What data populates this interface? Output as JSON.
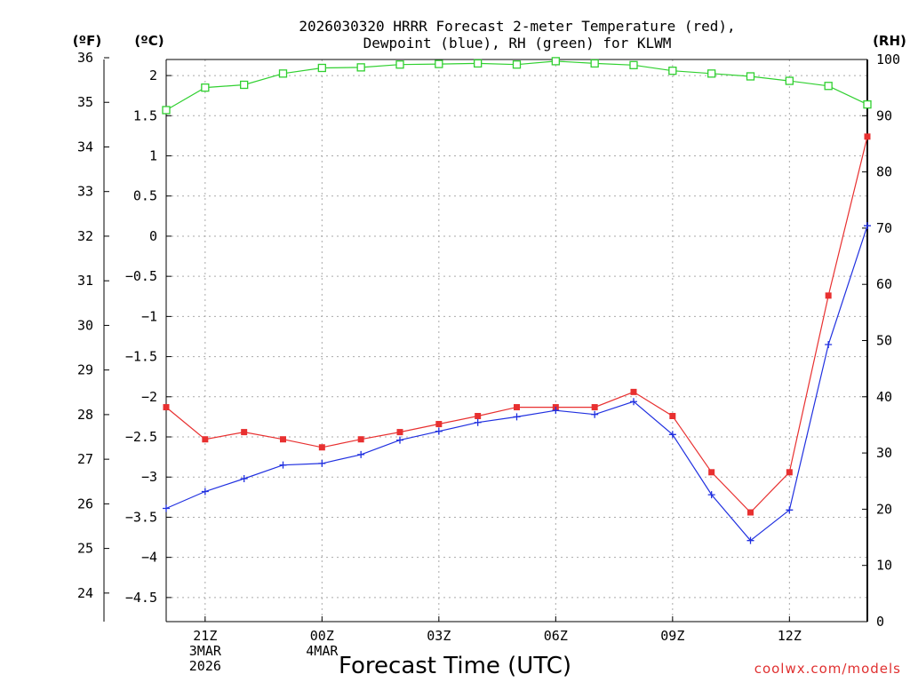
{
  "chart_data": {
    "type": "line",
    "title_line1": "2026030320 HRRR Forecast 2-meter Temperature (red),",
    "title_line2": "Dewpoint (blue), RH (green) for KLWM",
    "xlabel": "Forecast Time (UTC)",
    "credit": "coolwx.com/models",
    "unit_f": "(ºF)",
    "unit_c": "(ºC)",
    "unit_rh": "(RH)",
    "x_hours": [
      0,
      1,
      2,
      3,
      4,
      5,
      6,
      7,
      8,
      9,
      10,
      11,
      12,
      13,
      14,
      15,
      16,
      17,
      18
    ],
    "xlim": [
      0,
      18
    ],
    "x_ticks": [
      {
        "hour": 1,
        "lines": [
          "21Z",
          "3MAR",
          "2026"
        ]
      },
      {
        "hour": 4,
        "lines": [
          "00Z",
          "4MAR"
        ]
      },
      {
        "hour": 7,
        "lines": [
          "03Z"
        ]
      },
      {
        "hour": 10,
        "lines": [
          "06Z"
        ]
      },
      {
        "hour": 13,
        "lines": [
          "09Z"
        ]
      },
      {
        "hour": 16,
        "lines": [
          "12Z"
        ]
      }
    ],
    "ylim_c": [
      -4.8,
      2.2
    ],
    "ylim_rh": [
      0,
      100
    ],
    "c_ticks": [
      "2",
      "1.5",
      "1",
      "0.5",
      "0",
      "−0.5",
      "−1",
      "−1.5",
      "−2",
      "−2.5",
      "−3",
      "−3.5",
      "−4",
      "−4.5"
    ],
    "c_tick_values": [
      2,
      1.5,
      1,
      0.5,
      0,
      -0.5,
      -1,
      -1.5,
      -2,
      -2.5,
      -3,
      -3.5,
      -4,
      -4.5
    ],
    "f_ticks": [
      36,
      35,
      34,
      33,
      32,
      31,
      30,
      29,
      28,
      27,
      26,
      25,
      24
    ],
    "rh_ticks": [
      0,
      10,
      20,
      30,
      40,
      50,
      60,
      70,
      80,
      90,
      100
    ],
    "series": [
      {
        "name": "Temperature",
        "color": "#e83030",
        "marker": "filled-square",
        "values": [
          -2.13,
          -2.53,
          -2.44,
          -2.53,
          -2.63,
          -2.53,
          -2.44,
          -2.34,
          -2.24,
          -2.13,
          -2.13,
          -2.13,
          -1.94,
          -2.24,
          -2.94,
          -3.44,
          -2.94,
          -0.74,
          1.24
        ]
      },
      {
        "name": "Dewpoint",
        "color": "#2030e0",
        "marker": "plus",
        "values": [
          -3.39,
          -3.18,
          -3.02,
          -2.85,
          -2.83,
          -2.72,
          -2.54,
          -2.43,
          -2.32,
          -2.25,
          -2.17,
          -2.22,
          -2.06,
          -2.47,
          -3.22,
          -3.79,
          -3.41,
          -1.35,
          0.13
        ]
      },
      {
        "name": "RH",
        "color": "#30d030",
        "marker": "open-square",
        "axis": "rh",
        "values": [
          91,
          95,
          95.5,
          97.5,
          98.5,
          98.6,
          99.1,
          99.2,
          99.3,
          99.1,
          99.7,
          99.3,
          99.0,
          98.0,
          97.5,
          97.0,
          96.2,
          95.3,
          92
        ]
      }
    ]
  }
}
